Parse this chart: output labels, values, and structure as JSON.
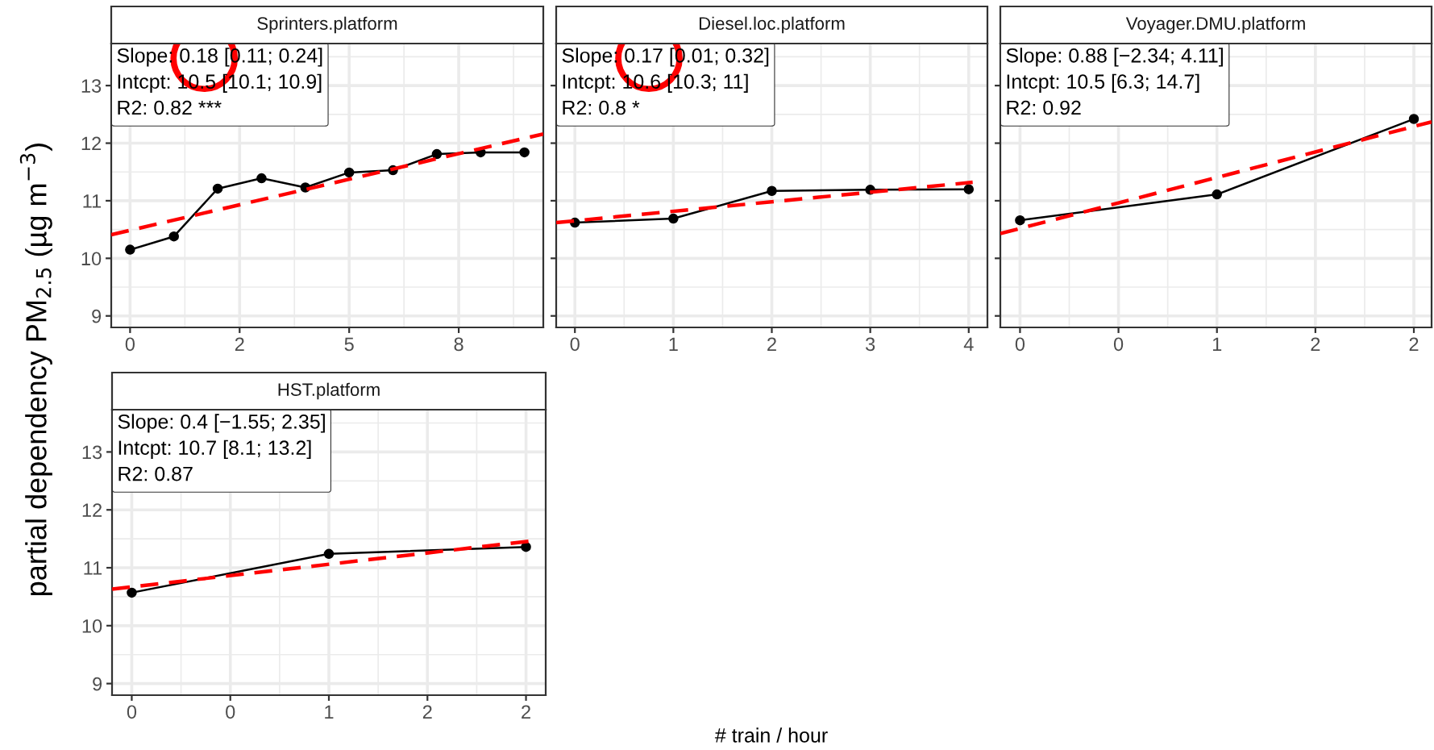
{
  "chart_data": [
    {
      "type": "line",
      "title": "Sprinters.platform",
      "ylabel": "partial dependency PM$_{2.5}$ (µg m$^{−3}$)",
      "xlim": [
        -0.43,
        9.43
      ],
      "xticks": [
        {
          "value": 0,
          "label": "0"
        },
        {
          "value": 2.5,
          "label": "2"
        },
        {
          "value": 5,
          "label": "5"
        },
        {
          "value": 7.5,
          "label": "8"
        }
      ],
      "ylim": [
        8.8,
        13.73
      ],
      "yticks": [
        9,
        10,
        11,
        12,
        13
      ],
      "grid": true,
      "tick_labels": "xy",
      "annotations": [
        "Slope: 0.18 [0.11; 0.24]",
        "Intcpt: 10.5 [10.1; 10.9]",
        "R2: 0.82 ***"
      ],
      "series": [
        {
          "color": "#000000",
          "marker": "circle",
          "line_style": "solid",
          "x": [
            0,
            1,
            2,
            3,
            4,
            5,
            6,
            7,
            8,
            9
          ],
          "values": [
            10.15,
            10.38,
            11.21,
            11.39,
            11.23,
            11.49,
            11.53,
            11.81,
            11.84,
            11.84
          ]
        },
        {
          "color": "#ff0000",
          "marker": "none",
          "line_style": "dashed",
          "x": [
            -0.43,
            9.43
          ],
          "values": [
            10.41,
            12.16
          ]
        }
      ]
    },
    {
      "type": "line",
      "title": "Diesel.loc.platform",
      "xlabel": "# train / hour",
      "xlim": [
        -0.19,
        4.19
      ],
      "xticks": [
        0,
        1,
        2,
        3,
        4
      ],
      "ylim": [
        8.8,
        13.73
      ],
      "yticks": [
        9,
        10,
        11,
        12,
        13
      ],
      "grid": true,
      "tick_labels": "x",
      "annotations": [
        "Slope: 0.17 [0.01; 0.32]",
        "Intcpt: 10.6 [10.3; 11]",
        "R2: 0.8 *"
      ],
      "series": [
        {
          "color": "#000000",
          "marker": "circle",
          "line_style": "solid",
          "x": [
            0,
            1,
            2,
            3,
            4
          ],
          "values": [
            10.62,
            10.69,
            11.17,
            11.19,
            11.2
          ]
        },
        {
          "color": "#ff0000",
          "marker": "none",
          "line_style": "dashed",
          "x": [
            -0.19,
            4.04
          ],
          "values": [
            10.62,
            11.32
          ]
        }
      ]
    },
    {
      "type": "line",
      "title": "Voyager.DMU.platform",
      "xlim": [
        -0.1,
        2.09
      ],
      "xticks": [
        {
          "value": 0,
          "label": "0"
        },
        {
          "value": 0.5,
          "label": "0"
        },
        {
          "value": 1,
          "label": "1"
        },
        {
          "value": 1.5,
          "label": "2"
        },
        {
          "value": 2,
          "label": "2"
        }
      ],
      "ylim": [
        8.8,
        13.73
      ],
      "yticks": [
        9,
        10,
        11,
        12,
        13
      ],
      "grid": true,
      "tick_labels": "x",
      "annotations": [
        "Slope: 0.88 [−2.34; 4.11]",
        "Intcpt: 10.5 [6.3; 14.7]",
        "R2: 0.92"
      ],
      "series": [
        {
          "color": "#000000",
          "marker": "circle",
          "line_style": "solid",
          "x": [
            0,
            1,
            2
          ],
          "values": [
            10.66,
            11.11,
            12.42
          ]
        },
        {
          "color": "#ff0000",
          "marker": "none",
          "line_style": "dashed",
          "x": [
            -0.1,
            2.09
          ],
          "values": [
            10.43,
            12.37
          ]
        }
      ]
    },
    {
      "type": "line",
      "title": "HST.platform",
      "xlim": [
        -0.1,
        2.1
      ],
      "xticks": [
        {
          "value": 0,
          "label": "0"
        },
        {
          "value": 0.5,
          "label": "0"
        },
        {
          "value": 1,
          "label": "1"
        },
        {
          "value": 1.5,
          "label": "2"
        },
        {
          "value": 2,
          "label": "2"
        }
      ],
      "ylim": [
        8.8,
        13.73
      ],
      "yticks": [
        9,
        10,
        11,
        12,
        13
      ],
      "grid": true,
      "tick_labels": "xy",
      "annotations": [
        "Slope: 0.4 [−1.55; 2.35]",
        "Intcpt: 10.7 [8.1; 13.2]",
        "R2: 0.87"
      ],
      "series": [
        {
          "color": "#000000",
          "marker": "circle",
          "line_style": "solid",
          "x": [
            0,
            1,
            2
          ],
          "values": [
            10.57,
            11.24,
            11.36
          ]
        },
        {
          "color": "#ff0000",
          "marker": "none",
          "line_style": "dashed",
          "x": [
            -0.1,
            2.02
          ],
          "values": [
            10.63,
            11.46
          ]
        }
      ]
    }
  ]
}
